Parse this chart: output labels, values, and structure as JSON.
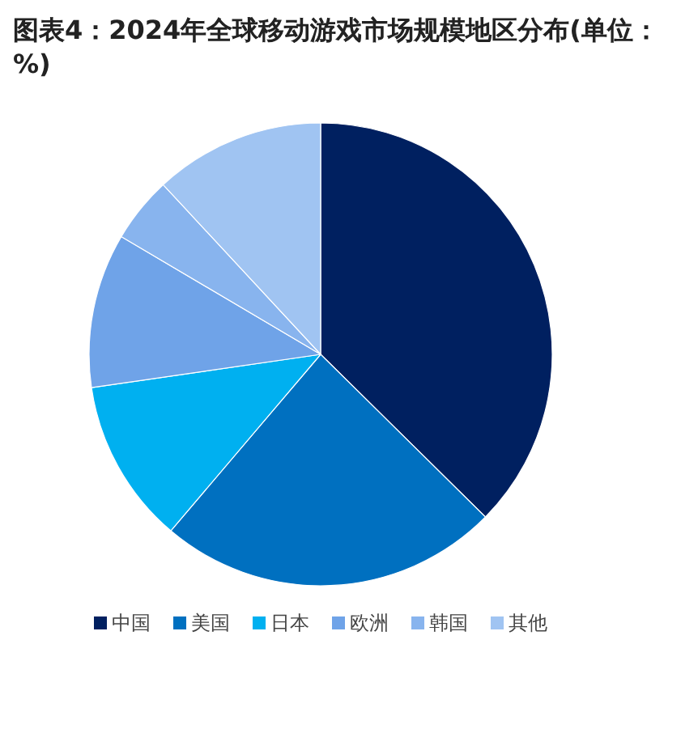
{
  "chart_data": {
    "type": "pie",
    "title": "图表4：2024年全球移动游戏市场规模地区分布(单位：%)",
    "categories": [
      "中国",
      "美国",
      "日本",
      "欧洲",
      "韩国",
      "其他"
    ],
    "values": [
      37.4,
      23.8,
      11.5,
      10.8,
      4.6,
      11.9
    ],
    "colors": [
      "#002060",
      "#0070c0",
      "#00b0f0",
      "#6fa3e8",
      "#88b4ee",
      "#a0c4f2"
    ],
    "legend": "bottom"
  }
}
